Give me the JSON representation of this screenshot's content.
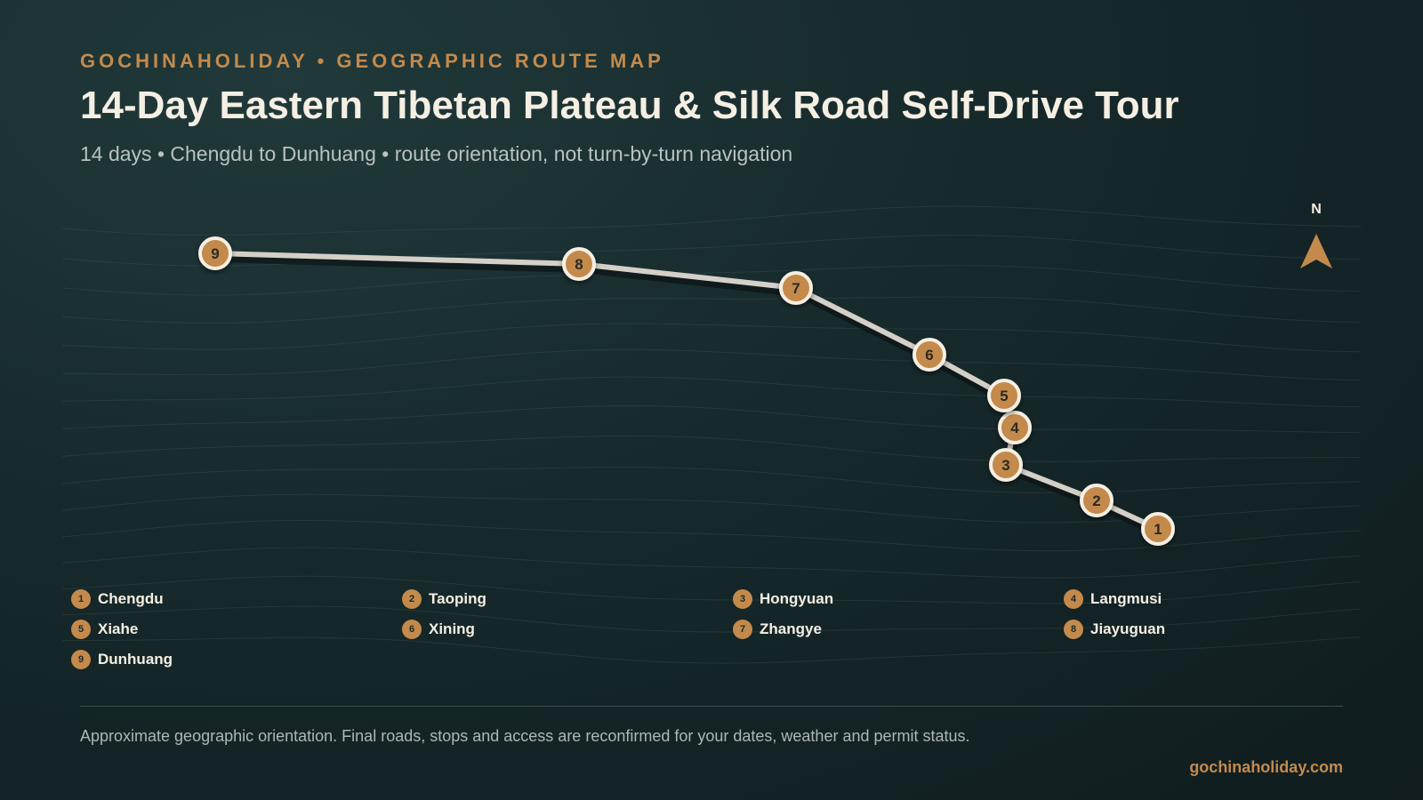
{
  "header": {
    "eyebrow": "GOCHINAHOLIDAY • GEOGRAPHIC ROUTE MAP",
    "title": "14-Day Eastern Tibetan Plateau & Silk Road Self-Drive Tour",
    "subtitle": "14 days • Chengdu to Dunhuang • route orientation, not turn-by-turn navigation"
  },
  "compass": {
    "label": "N",
    "icon": "north-arrow-icon"
  },
  "colors": {
    "accent": "#c48a4c",
    "route": "#d4d0c8",
    "marker_border": "#f5efe3",
    "marker_text": "#2a2a24"
  },
  "stops": [
    {
      "num": "1",
      "name": "Chengdu"
    },
    {
      "num": "2",
      "name": "Taoping"
    },
    {
      "num": "3",
      "name": "Hongyuan"
    },
    {
      "num": "4",
      "name": "Langmusi"
    },
    {
      "num": "5",
      "name": "Xiahe"
    },
    {
      "num": "6",
      "name": "Xining"
    },
    {
      "num": "7",
      "name": "Zhangye"
    },
    {
      "num": "8",
      "name": "Jiayuguan"
    },
    {
      "num": "9",
      "name": "Dunhuang"
    }
  ],
  "footer": {
    "note": "Approximate geographic orientation. Final roads, stops and access are reconfirmed for your dates, weather and permit status.",
    "site": "gochinaholiday.com"
  }
}
